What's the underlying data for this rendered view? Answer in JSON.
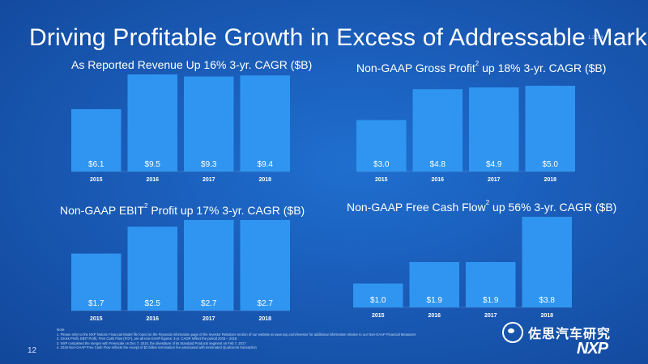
{
  "slide": {
    "title": "Driving Profitable Growth in Excess of Addressable Market",
    "title_refs": "1,2,3,4",
    "page_number": "12",
    "logo": "NXP",
    "watermark_text": "佐思汽车研究",
    "watermark_icon": "wechat-icon",
    "notes_label": "Note",
    "notes": [
      "1.    Please refer to the NXP historic Financial Model file found on the Financial Information page of the Investor Relations section of our website at www.nxp.com/investor for additional information relative to our Non-GAAP Financial Measures",
      "2.    Gross Profit, EBIT Profit, Free Cash Flow (FCF), are all non-GAAP figures; 3-yr. CAGR reflect the period 2015 – 2018",
      "3.    NXP completed the merger with Freescale on Dec 7, 2015, the divestiture of its Standard Products segment on Feb 7, 2017",
      "4.    2018 Non-GAAP Free Cash Flow reflects the receipt of $2 billion termination fee associated with terminated Qualcomm transaction"
    ]
  },
  "colors": {
    "background": "#1a5cb8",
    "bar": "#2f95f0",
    "label": "#ffffff"
  },
  "chart_data": [
    {
      "type": "bar",
      "title": "As Reported Revenue Up 16% 3-yr. CAGR ($B)",
      "title_sup": "",
      "categories": [
        "2015",
        "2016",
        "2017",
        "2018"
      ],
      "values": [
        6.1,
        9.5,
        9.3,
        9.4
      ],
      "value_labels": [
        "$6.1",
        "$9.5",
        "$9.3",
        "$9.4"
      ],
      "ylim": [
        0,
        9.5
      ]
    },
    {
      "type": "bar",
      "title": "Non-GAAP Gross Profit",
      "title_sup": "2",
      "title_rest": " up 18% 3-yr. CAGR ($B)",
      "categories": [
        "2015",
        "2016",
        "2017",
        "2018"
      ],
      "values": [
        3.0,
        4.8,
        4.9,
        5.0
      ],
      "value_labels": [
        "$3.0",
        "$4.8",
        "$4.9",
        "$5.0"
      ],
      "ylim": [
        0,
        5.0
      ]
    },
    {
      "type": "bar",
      "title": "Non-GAAP EBIT",
      "title_sup": "2",
      "title_rest": " Profit up 17% 3-yr. CAGR ($B)",
      "categories": [
        "2015",
        "2016",
        "2017",
        "2018"
      ],
      "values": [
        1.7,
        2.5,
        2.7,
        2.7
      ],
      "value_labels": [
        "$1.7",
        "$2.5",
        "$2.7",
        "$2.7"
      ],
      "ylim": [
        0,
        2.7
      ]
    },
    {
      "type": "bar",
      "title": "Non-GAAP Free Cash Flow",
      "title_sup": "2",
      "title_rest": " up 56% 3-yr. CAGR ($B)",
      "categories": [
        "2015",
        "2016",
        "2017",
        "2018"
      ],
      "values": [
        1.0,
        1.9,
        1.9,
        3.8
      ],
      "value_labels": [
        "$1.0",
        "$1.9",
        "$1.9",
        "$3.8"
      ],
      "ylim": [
        0,
        3.8
      ]
    }
  ]
}
